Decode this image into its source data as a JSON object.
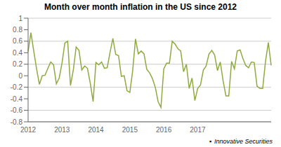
{
  "chart_data": {
    "type": "line",
    "title": "Month over month inflation in the US since 2012",
    "categories": [
      "2012",
      null,
      null,
      null,
      null,
      null,
      null,
      null,
      null,
      null,
      null,
      null,
      "2013",
      null,
      null,
      null,
      null,
      null,
      null,
      null,
      null,
      null,
      null,
      null,
      "2014",
      null,
      null,
      null,
      null,
      null,
      null,
      null,
      null,
      null,
      null,
      null,
      "2015",
      null,
      null,
      null,
      null,
      null,
      null,
      null,
      null,
      null,
      null,
      null,
      "2016",
      null,
      null,
      null,
      null,
      null,
      null,
      null,
      null,
      null,
      null,
      null,
      "2017",
      null,
      null,
      null,
      null,
      null,
      null,
      null,
      null,
      null,
      null,
      null,
      null,
      null,
      null,
      null,
      null,
      null,
      null,
      null,
      null,
      null,
      null,
      null,
      null,
      null,
      null
    ],
    "values": [
      0.42,
      0.75,
      0.43,
      0.12,
      -0.15,
      0.0,
      0.01,
      0.13,
      0.24,
      0.19,
      -0.14,
      -0.04,
      0.22,
      0.57,
      0.6,
      -0.17,
      0.1,
      0.5,
      0.44,
      0.1,
      0.17,
      0.13,
      -0.13,
      -0.45,
      0.23,
      0.19,
      0.24,
      0.13,
      0.14,
      0.41,
      0.65,
      0.37,
      0.35,
      -0.01,
      0.0,
      -0.26,
      -0.29,
      0.09,
      0.64,
      0.38,
      0.43,
      0.38,
      0.11,
      0.05,
      -0.05,
      -0.2,
      -0.45,
      -0.55,
      0.12,
      0.22,
      0.22,
      0.6,
      0.55,
      0.47,
      0.43,
      0.07,
      0.2,
      -0.22,
      -0.04,
      -0.43,
      -0.22,
      -0.16,
      0.1,
      0.17,
      0.38,
      0.44,
      0.36,
      0.09,
      0.24,
      -0.09,
      -0.35,
      -0.35,
      0.25,
      0.12,
      0.43,
      0.45,
      0.3,
      0.18,
      0.14,
      0.24,
      0.23,
      -0.18,
      -0.22,
      -0.22,
      0.25,
      0.58,
      0.18
    ],
    "color": "#8faa3e",
    "ylim": [
      -0.8,
      1.0
    ],
    "yticks": [
      -0.8,
      -0.6,
      -0.4,
      -0.2,
      0,
      0.2,
      0.4,
      0.6,
      0.8,
      1
    ],
    "grid": true,
    "annotations": [
      "▪",
      "Innovative Securities"
    ]
  }
}
